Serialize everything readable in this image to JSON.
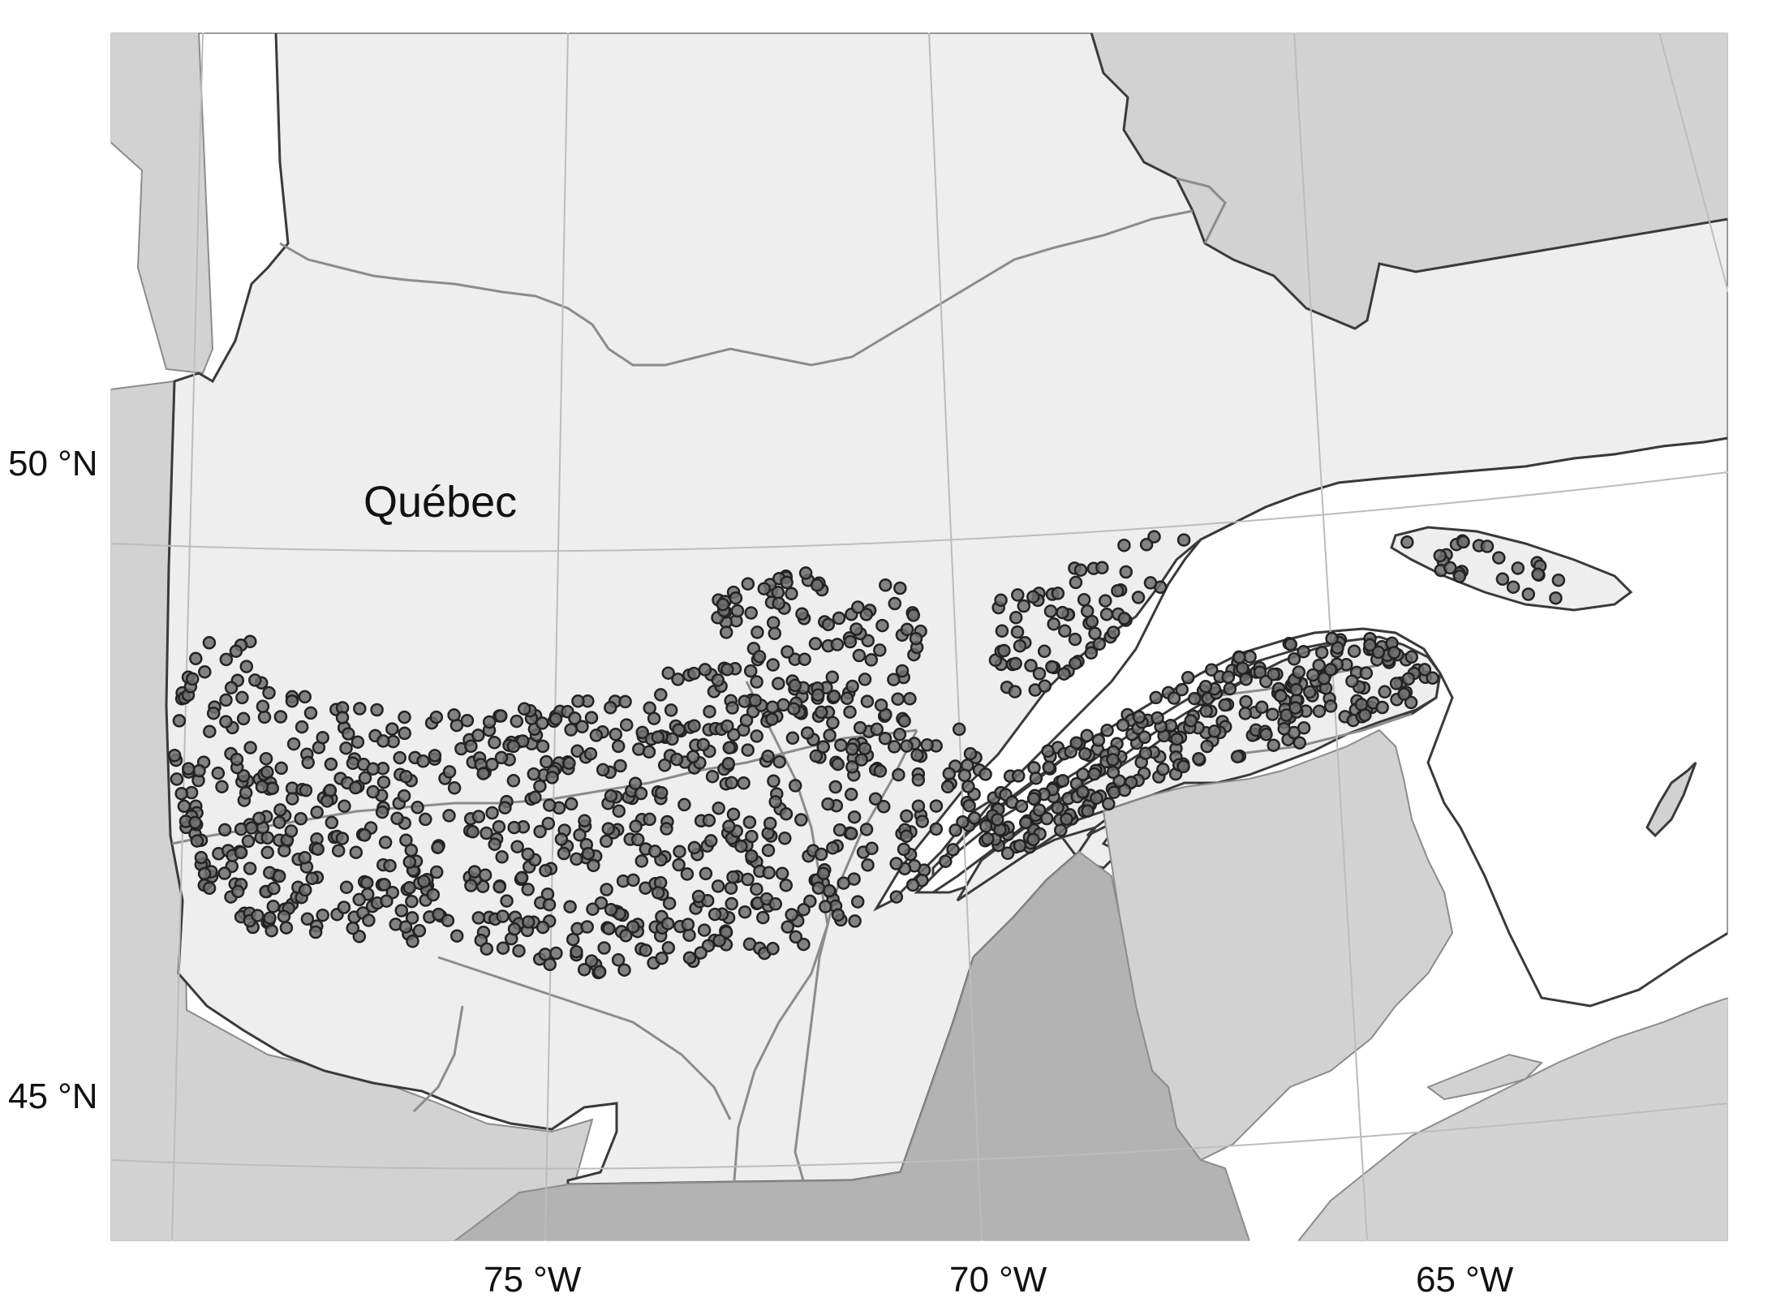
{
  "map": {
    "region_label": "Québec",
    "axes": {
      "latitude_labels": [
        "50 °N",
        "45 °N"
      ],
      "longitude_labels": [
        "75 °W",
        "70 °W",
        "65 °W"
      ]
    },
    "colors": {
      "quebec_fill": "#eeeeee",
      "neighbor_land": "#d2d2d2",
      "usa_fill": "#b3b3b3",
      "water": "#ffffff",
      "border_dark": "#3a3a3a",
      "border_grey": "#8c8c8c",
      "graticule": "#bcbcbc",
      "point_fill": "#6e6e6e",
      "point_stroke": "#222222"
    },
    "points_style": "grey circle markers with dark outline, densely distributed across southern Québec and the Gaspé peninsula"
  }
}
